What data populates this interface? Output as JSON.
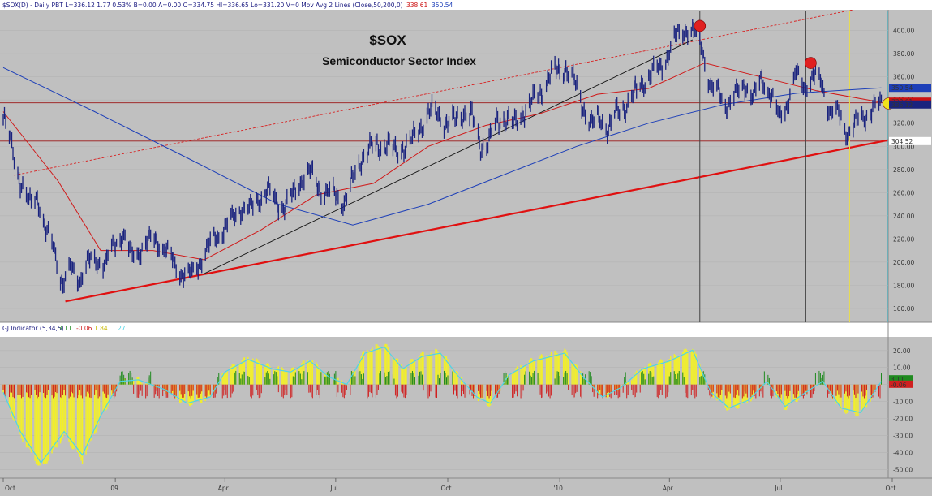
{
  "header": {
    "symbol_line": "$SOX(D) - Daily PBT  L=336.12  1.77  0.53%  B=0.00  A=0.00  O=334.75  HI=336.65  Lo=331.20  V=0  Mov Avg 2 Lines (Close,50,200,0)",
    "ma_value_1": "338.61",
    "ma_value_2": "350.54"
  },
  "chart_data": [
    {
      "type": "line",
      "title": "$SOX",
      "subtitle": "Semiconductor Sector Index",
      "x_axis_labels": [
        "Oct",
        "'09",
        "Apr",
        "Jul",
        "Oct",
        "'10",
        "Apr",
        "Jul",
        "Oct"
      ],
      "y_ticks": [
        160,
        180,
        200,
        220,
        240,
        260,
        280,
        300,
        320,
        340,
        360,
        380,
        400
      ],
      "ylim": [
        148,
        418
      ],
      "grid": true,
      "price_close_weekly": [
        {
          "d": "2008-10-01",
          "v": 325
        },
        {
          "d": "2008-10-08",
          "v": 300
        },
        {
          "d": "2008-10-15",
          "v": 270
        },
        {
          "d": "2008-10-22",
          "v": 250
        },
        {
          "d": "2008-10-29",
          "v": 258
        },
        {
          "d": "2008-11-05",
          "v": 225
        },
        {
          "d": "2008-11-12",
          "v": 212
        },
        {
          "d": "2008-11-19",
          "v": 180
        },
        {
          "d": "2008-11-26",
          "v": 195
        },
        {
          "d": "2008-12-03",
          "v": 185
        },
        {
          "d": "2008-12-10",
          "v": 200
        },
        {
          "d": "2008-12-17",
          "v": 202
        },
        {
          "d": "2008-12-24",
          "v": 198
        },
        {
          "d": "2008-12-31",
          "v": 215
        },
        {
          "d": "2009-01-07",
          "v": 225
        },
        {
          "d": "2009-01-14",
          "v": 205
        },
        {
          "d": "2009-01-21",
          "v": 210
        },
        {
          "d": "2009-01-28",
          "v": 218
        },
        {
          "d": "2009-02-04",
          "v": 220
        },
        {
          "d": "2009-02-11",
          "v": 210
        },
        {
          "d": "2009-02-18",
          "v": 200
        },
        {
          "d": "2009-02-25",
          "v": 190
        },
        {
          "d": "2009-03-04",
          "v": 188
        },
        {
          "d": "2009-03-11",
          "v": 200
        },
        {
          "d": "2009-03-18",
          "v": 212
        },
        {
          "d": "2009-03-25",
          "v": 222
        },
        {
          "d": "2009-04-01",
          "v": 230
        },
        {
          "d": "2009-04-08",
          "v": 238
        },
        {
          "d": "2009-04-15",
          "v": 248
        },
        {
          "d": "2009-04-22",
          "v": 245
        },
        {
          "d": "2009-04-29",
          "v": 255
        },
        {
          "d": "2009-05-06",
          "v": 262
        },
        {
          "d": "2009-05-13",
          "v": 252
        },
        {
          "d": "2009-05-20",
          "v": 248
        },
        {
          "d": "2009-05-27",
          "v": 258
        },
        {
          "d": "2009-06-03",
          "v": 272
        },
        {
          "d": "2009-06-10",
          "v": 278
        },
        {
          "d": "2009-06-17",
          "v": 265
        },
        {
          "d": "2009-06-24",
          "v": 260
        },
        {
          "d": "2009-07-01",
          "v": 258
        },
        {
          "d": "2009-07-08",
          "v": 252
        },
        {
          "d": "2009-07-15",
          "v": 270
        },
        {
          "d": "2009-07-22",
          "v": 290
        },
        {
          "d": "2009-07-29",
          "v": 298
        },
        {
          "d": "2009-08-05",
          "v": 300
        },
        {
          "d": "2009-08-12",
          "v": 302
        },
        {
          "d": "2009-08-19",
          "v": 295
        },
        {
          "d": "2009-08-26",
          "v": 300
        },
        {
          "d": "2009-09-02",
          "v": 305
        },
        {
          "d": "2009-09-09",
          "v": 318
        },
        {
          "d": "2009-09-16",
          "v": 330
        },
        {
          "d": "2009-09-23",
          "v": 328
        },
        {
          "d": "2009-09-30",
          "v": 320
        },
        {
          "d": "2009-10-07",
          "v": 322
        },
        {
          "d": "2009-10-14",
          "v": 330
        },
        {
          "d": "2009-10-21",
          "v": 325
        },
        {
          "d": "2009-10-28",
          "v": 300
        },
        {
          "d": "2009-11-04",
          "v": 305
        },
        {
          "d": "2009-11-11",
          "v": 322
        },
        {
          "d": "2009-11-18",
          "v": 325
        },
        {
          "d": "2009-11-25",
          "v": 318
        },
        {
          "d": "2009-12-02",
          "v": 330
        },
        {
          "d": "2009-12-09",
          "v": 338
        },
        {
          "d": "2009-12-16",
          "v": 345
        },
        {
          "d": "2009-12-23",
          "v": 360
        },
        {
          "d": "2009-12-30",
          "v": 365
        },
        {
          "d": "2010-01-06",
          "v": 368
        },
        {
          "d": "2010-01-13",
          "v": 355
        },
        {
          "d": "2010-01-20",
          "v": 335
        },
        {
          "d": "2010-01-27",
          "v": 318
        },
        {
          "d": "2010-02-03",
          "v": 325
        },
        {
          "d": "2010-02-10",
          "v": 315
        },
        {
          "d": "2010-02-17",
          "v": 330
        },
        {
          "d": "2010-02-24",
          "v": 335
        },
        {
          "d": "2010-03-03",
          "v": 345
        },
        {
          "d": "2010-03-10",
          "v": 355
        },
        {
          "d": "2010-03-17",
          "v": 362
        },
        {
          "d": "2010-03-24",
          "v": 368
        },
        {
          "d": "2010-03-31",
          "v": 380
        },
        {
          "d": "2010-04-07",
          "v": 395
        },
        {
          "d": "2010-04-14",
          "v": 402
        },
        {
          "d": "2010-04-21",
          "v": 398
        },
        {
          "d": "2010-04-28",
          "v": 385
        },
        {
          "d": "2010-05-05",
          "v": 350
        },
        {
          "d": "2010-05-12",
          "v": 345
        },
        {
          "d": "2010-05-19",
          "v": 335
        },
        {
          "d": "2010-05-26",
          "v": 345
        },
        {
          "d": "2010-06-02",
          "v": 355
        },
        {
          "d": "2010-06-09",
          "v": 340
        },
        {
          "d": "2010-06-16",
          "v": 360
        },
        {
          "d": "2010-06-23",
          "v": 345
        },
        {
          "d": "2010-06-30",
          "v": 325
        },
        {
          "d": "2010-07-07",
          "v": 338
        },
        {
          "d": "2010-07-14",
          "v": 362
        },
        {
          "d": "2010-07-21",
          "v": 352
        },
        {
          "d": "2010-07-28",
          "v": 360
        },
        {
          "d": "2010-08-04",
          "v": 355
        },
        {
          "d": "2010-08-11",
          "v": 330
        },
        {
          "d": "2010-08-18",
          "v": 328
        },
        {
          "d": "2010-08-25",
          "v": 312
        },
        {
          "d": "2010-09-01",
          "v": 320
        },
        {
          "d": "2010-09-08",
          "v": 326
        },
        {
          "d": "2010-09-15",
          "v": 333
        },
        {
          "d": "2010-09-22",
          "v": 336
        }
      ],
      "ma50": [
        {
          "d": "2008-10-01",
          "v": 330
        },
        {
          "d": "2008-11-15",
          "v": 270
        },
        {
          "d": "2008-12-20",
          "v": 210
        },
        {
          "d": "2009-02-01",
          "v": 210
        },
        {
          "d": "2009-03-15",
          "v": 202
        },
        {
          "d": "2009-05-01",
          "v": 228
        },
        {
          "d": "2009-06-15",
          "v": 258
        },
        {
          "d": "2009-08-01",
          "v": 268
        },
        {
          "d": "2009-09-15",
          "v": 300
        },
        {
          "d": "2009-11-01",
          "v": 318
        },
        {
          "d": "2009-12-15",
          "v": 328
        },
        {
          "d": "2010-02-01",
          "v": 345
        },
        {
          "d": "2010-03-15",
          "v": 350
        },
        {
          "d": "2010-04-30",
          "v": 372
        },
        {
          "d": "2010-06-15",
          "v": 360
        },
        {
          "d": "2010-07-31",
          "v": 348
        },
        {
          "d": "2010-09-22",
          "v": 338
        }
      ],
      "ma200": [
        {
          "d": "2008-10-01",
          "v": 368
        },
        {
          "d": "2008-12-15",
          "v": 330
        },
        {
          "d": "2009-03-01",
          "v": 290
        },
        {
          "d": "2009-05-15",
          "v": 250
        },
        {
          "d": "2009-07-15",
          "v": 232
        },
        {
          "d": "2009-09-15",
          "v": 250
        },
        {
          "d": "2009-11-15",
          "v": 275
        },
        {
          "d": "2010-01-15",
          "v": 300
        },
        {
          "d": "2010-03-15",
          "v": 320
        },
        {
          "d": "2010-05-15",
          "v": 336
        },
        {
          "d": "2010-07-15",
          "v": 346
        },
        {
          "d": "2010-09-22",
          "v": 350.54
        }
      ],
      "price_axis_labels": [
        {
          "text": "337.56",
          "value": 337.56,
          "fill": "#ffffff",
          "color": "#8b0000"
        },
        {
          "text": "304.52",
          "value": 304.52,
          "fill": "#ffffff",
          "color": "#8b0000"
        },
        {
          "text": "350.54",
          "value": 350.54,
          "fill": "#1d3fb8",
          "color": "#ffffff"
        },
        {
          "text": "338.61",
          "value": 338.61,
          "fill": "#cc1111",
          "color": "#ffffff"
        },
        {
          "text": "336.12",
          "value": 336.12,
          "fill": "#1a237e",
          "color": "#ffffff"
        }
      ],
      "horizontal_lines": [
        337.56,
        304.52
      ],
      "annotations": [
        {
          "type": "marker",
          "d": "2010-04-26",
          "v": 404,
          "color": "#e02020"
        },
        {
          "type": "marker",
          "d": "2010-07-26",
          "v": 372,
          "color": "#e02020"
        },
        {
          "type": "marker",
          "d": "2010-09-28",
          "v": 337,
          "color": "#f0e21a"
        }
      ],
      "vertical_lines": [
        {
          "d": "2010-04-26",
          "color": "#444444"
        },
        {
          "d": "2010-07-22",
          "color": "#444444"
        },
        {
          "d": "2010-08-27",
          "color": "#e8dc50"
        },
        {
          "d": "2010-09-27",
          "color": "#4fd4e6"
        }
      ],
      "trendlines": [
        {
          "from": [
            "2008-11-21",
            166
          ],
          "to": [
            "2010-10-30",
            312
          ],
          "color": "#e01010"
        },
        {
          "from": [
            "2008-10-10",
            275
          ],
          "to": [
            "2010-08-30",
            418
          ],
          "color": "#d82020"
        },
        {
          "from": [
            "2009-03-15",
            190
          ],
          "to": [
            "2010-04-20",
            392
          ],
          "color": "#111111"
        }
      ]
    },
    {
      "type": "bar",
      "title": "GJ Indicator (5,34,5)",
      "legend_values": [
        {
          "label": "3.11",
          "color": "#1f8a1f"
        },
        {
          "label": "-0.06",
          "color": "#d02020"
        },
        {
          "label": "1.84",
          "color": "#c7b800"
        },
        {
          "label": "1.27",
          "color": "#4fd4e6"
        }
      ],
      "y_ticks": [
        20,
        10,
        0,
        -10,
        -20,
        -30,
        -40,
        -50
      ],
      "ylim": [
        -55,
        28
      ],
      "right_labels": [
        {
          "text": "3.11",
          "value": 3.11,
          "fill": "#1f8a1f"
        },
        {
          "text": "-0.06",
          "value": -0.06,
          "fill": "#d02020"
        }
      ],
      "series": [
        {
          "values": [
            {
              "d": "2008-10-01",
              "v": -5
            },
            {
              "d": "2008-10-15",
              "v": -30
            },
            {
              "d": "2008-11-01",
              "v": -50
            },
            {
              "d": "2008-11-20",
              "v": -30
            },
            {
              "d": "2008-12-05",
              "v": -45
            },
            {
              "d": "2008-12-20",
              "v": -20
            },
            {
              "d": "2009-01-05",
              "v": 2
            },
            {
              "d": "2009-01-20",
              "v": 3
            },
            {
              "d": "2009-02-10",
              "v": -3
            },
            {
              "d": "2009-03-01",
              "v": -12
            },
            {
              "d": "2009-03-20",
              "v": -8
            },
            {
              "d": "2009-04-01",
              "v": 8
            },
            {
              "d": "2009-04-20",
              "v": 16
            },
            {
              "d": "2009-05-10",
              "v": 10
            },
            {
              "d": "2009-05-25",
              "v": 8
            },
            {
              "d": "2009-06-10",
              "v": 15
            },
            {
              "d": "2009-06-25",
              "v": 5
            },
            {
              "d": "2009-07-10",
              "v": 0
            },
            {
              "d": "2009-07-25",
              "v": 20
            },
            {
              "d": "2009-08-10",
              "v": 24
            },
            {
              "d": "2009-08-25",
              "v": 10
            },
            {
              "d": "2009-09-10",
              "v": 18
            },
            {
              "d": "2009-09-25",
              "v": 20
            },
            {
              "d": "2009-10-10",
              "v": 5
            },
            {
              "d": "2009-10-25",
              "v": -8
            },
            {
              "d": "2009-11-05",
              "v": -12
            },
            {
              "d": "2009-11-20",
              "v": 6
            },
            {
              "d": "2009-12-10",
              "v": 15
            },
            {
              "d": "2010-01-05",
              "v": 20
            },
            {
              "d": "2010-01-20",
              "v": 5
            },
            {
              "d": "2010-02-05",
              "v": -8
            },
            {
              "d": "2010-02-20",
              "v": -2
            },
            {
              "d": "2010-03-10",
              "v": 10
            },
            {
              "d": "2010-04-01",
              "v": 15
            },
            {
              "d": "2010-04-20",
              "v": 22
            },
            {
              "d": "2010-05-05",
              "v": -5
            },
            {
              "d": "2010-05-20",
              "v": -15
            },
            {
              "d": "2010-06-05",
              "v": -10
            },
            {
              "d": "2010-06-20",
              "v": 2
            },
            {
              "d": "2010-07-05",
              "v": -14
            },
            {
              "d": "2010-07-20",
              "v": -6
            },
            {
              "d": "2010-08-05",
              "v": 2
            },
            {
              "d": "2010-08-20",
              "v": -15
            },
            {
              "d": "2010-09-05",
              "v": -18
            },
            {
              "d": "2010-09-22",
              "v": 2
            }
          ]
        }
      ]
    }
  ]
}
